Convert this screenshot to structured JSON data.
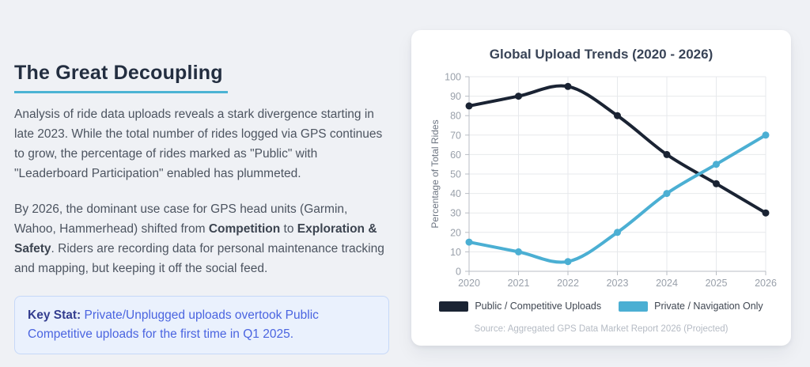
{
  "theme": {
    "page_bg": "#eff1f5",
    "card_bg": "#ffffff",
    "accent": "#4bb3d4",
    "heading": "#232e40",
    "body_text": "#4c5460",
    "chart_title": "#394457",
    "tick_text": "#99a0aa",
    "axis_line": "#b9bdc4",
    "grid_line": "#e7e9ec",
    "axis_title": "#6d7582",
    "legend_text": "#3f4651",
    "source_text": "#b5bbc4",
    "keystat_bg": "#eaf1fd",
    "keystat_border": "#c6d8f8",
    "keystat_label": "#333d8f",
    "keystat_text": "#4a64e0"
  },
  "article": {
    "title": "The Great Decoupling",
    "paragraph1": "Analysis of ride data uploads reveals a stark divergence starting in late 2023. While the total number of rides logged via GPS continues to grow, the percentage of rides marked as \"Public\" with \"Leaderboard Participation\" enabled has plummeted.",
    "paragraph2": {
      "part1": "By 2026, the dominant use case for GPS head units (Garmin, Wahoo, Hammerhead) shifted from ",
      "bold1": "Competition",
      "part2": " to ",
      "bold2": "Exploration & Safety",
      "part3": ". Riders are recording data for personal maintenance tracking and mapping, but keeping it off the social feed."
    },
    "keystat": {
      "label": "Key Stat:",
      "text": " Private/Unplugged uploads overtook Public Competitive uploads for the first time in Q1 2025."
    }
  },
  "chart_data": {
    "type": "line",
    "title": "Global Upload Trends (2020 - 2026)",
    "categories": [
      "2020",
      "2021",
      "2022",
      "2023",
      "2024",
      "2025",
      "2026"
    ],
    "series": [
      {
        "name": "Public / Competitive Uploads",
        "color": "#1a2333",
        "values": [
          85,
          90,
          95,
          80,
          60,
          45,
          30
        ]
      },
      {
        "name": "Private / Navigation Only",
        "color": "#4bafd3",
        "values": [
          15,
          10,
          5,
          20,
          40,
          55,
          70
        ]
      }
    ],
    "xlabel": "",
    "ylabel": "Percentage of Total Rides",
    "ylim": [
      0,
      100
    ],
    "ytick_step": 10,
    "grid": true,
    "curve": "smooth",
    "legend_position": "bottom",
    "source": "Source: Aggregated GPS Data Market Report 2026 (Projected)"
  }
}
